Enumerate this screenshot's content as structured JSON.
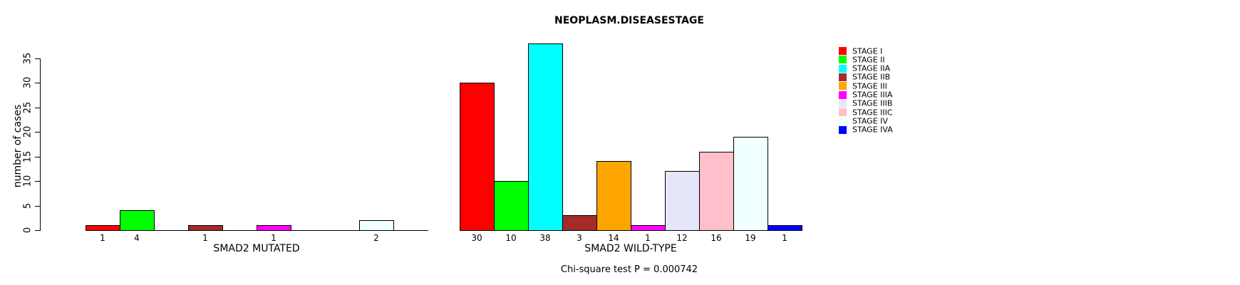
{
  "chart_data": {
    "type": "bar",
    "title": "NEOPLASM.DISEASESTAGE",
    "ylabel": "number of cases",
    "xlabel": "",
    "ylim": [
      0,
      38
    ],
    "yticks": [
      0,
      5,
      10,
      15,
      20,
      25,
      30,
      35
    ],
    "grid": false,
    "legend_position": "right-outside",
    "annotation": "Chi-square test P = 0.000742",
    "categories": [
      "STAGE I",
      "STAGE II",
      "STAGE IIA",
      "STAGE IIB",
      "STAGE III",
      "STAGE IIIA",
      "STAGE IIIB",
      "STAGE IIIC",
      "STAGE IV",
      "STAGE IVA"
    ],
    "colors": [
      "#FF0000",
      "#00FF00",
      "#00FFFF",
      "#A52A2A",
      "#FFA500",
      "#FF00FF",
      "#E6E6FA",
      "#FFC0CB",
      "#F0FFFF",
      "#0000FF"
    ],
    "series": [
      {
        "name": "SMAD2 MUTATED",
        "values": [
          1,
          4,
          0,
          1,
          0,
          1,
          0,
          0,
          2,
          0
        ]
      },
      {
        "name": "SMAD2 WILD-TYPE",
        "values": [
          30,
          10,
          38,
          3,
          14,
          1,
          12,
          16,
          19,
          1
        ]
      }
    ],
    "bar_value_labels_shown": true
  },
  "legend": {
    "entries": [
      {
        "label": "STAGE I",
        "color": "#FF0000"
      },
      {
        "label": "STAGE II",
        "color": "#00FF00"
      },
      {
        "label": "STAGE IIA",
        "color": "#00FFFF"
      },
      {
        "label": "STAGE IIB",
        "color": "#A52A2A"
      },
      {
        "label": "STAGE III",
        "color": "#FFA500"
      },
      {
        "label": "STAGE IIIA",
        "color": "#FF00FF"
      },
      {
        "label": "STAGE IIIB",
        "color": "#E6E6FA"
      },
      {
        "label": "STAGE IIIC",
        "color": "#FFC0CB"
      },
      {
        "label": "STAGE IV",
        "color": "#F0FFFF"
      },
      {
        "label": "STAGE IVA",
        "color": "#0000FF"
      }
    ]
  }
}
